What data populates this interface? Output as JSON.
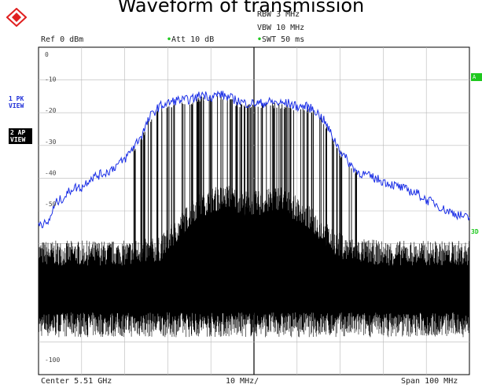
{
  "title": "Waveform of transmission",
  "header": {
    "ref": "Ref  0 dBm",
    "att": "Att  10 dB",
    "rbw": "RBW 3 MHz",
    "vbw": "VBW 10 MHz",
    "swt": "SWT 50 ms"
  },
  "traces": {
    "trace1_line1": "1 PK",
    "trace1_line2": "VIEW",
    "trace2_line1": "2 AP",
    "trace2_line2": "VIEW"
  },
  "side_labels": {
    "right_a": "A",
    "right_3d": "3D"
  },
  "footer": {
    "center": "Center 5.51 GHz",
    "per_div": "10 MHz/",
    "span": "Span 100 MHz"
  },
  "colors": {
    "pk_trace": "#1a2ee6",
    "ap_trace": "#000000",
    "grid": "#b8b8b8",
    "status_dot": "#1ec81e"
  },
  "chart_data": {
    "type": "line",
    "title": "Waveform of transmission",
    "xlabel": "",
    "ylabel": "",
    "x_unit": "MHz offset from center",
    "xlim": [
      -50,
      50
    ],
    "ylim": [
      -105,
      0
    ],
    "y_ticks": [
      "0",
      "-10",
      "-20",
      "-30",
      "-40",
      "-50",
      "-100"
    ],
    "grid": true,
    "series": [
      {
        "name": "1 PK VIEW",
        "x": [
          -50,
          -48,
          -46,
          -44,
          -42,
          -40,
          -38,
          -36,
          -34,
          -32,
          -30,
          -28,
          -26,
          -24,
          -22,
          -20,
          -18,
          -16,
          -14,
          -12,
          -10,
          -8,
          -6,
          -4,
          -2,
          0,
          2,
          4,
          6,
          8,
          10,
          12,
          14,
          16,
          18,
          20,
          22,
          24,
          26,
          28,
          30,
          32,
          34,
          36,
          38,
          40,
          42,
          44,
          46,
          48,
          50
        ],
        "values": [
          -56,
          -57,
          -50,
          -48,
          -45,
          -45,
          -42,
          -41,
          -40,
          -38,
          -36,
          -32,
          -28,
          -22,
          -19,
          -18,
          -17,
          -17,
          -16.5,
          -15,
          -16,
          -15,
          -16,
          -17,
          -18,
          -18,
          -18,
          -17.5,
          -18,
          -18,
          -19,
          -19,
          -20,
          -23,
          -28,
          -33,
          -37,
          -40,
          -41,
          -42,
          -43,
          -44,
          -45,
          -46,
          -47,
          -49,
          -50,
          -52,
          -53,
          -54,
          -55
        ]
      },
      {
        "name": "2 AP VIEW",
        "x": [
          -50,
          -40,
          -30,
          -22,
          -18,
          -14,
          -10,
          -6,
          -2,
          2,
          6,
          10,
          14,
          18,
          22,
          30,
          40,
          50
        ],
        "values": [
          -70,
          -70,
          -70,
          -69,
          -63,
          -56,
          -53,
          -52,
          -54,
          -54,
          -52,
          -56,
          -60,
          -66,
          -69,
          -70,
          -70,
          -70
        ],
        "noise_floor_low": -93,
        "noise_floor_high": -74
      }
    ]
  }
}
